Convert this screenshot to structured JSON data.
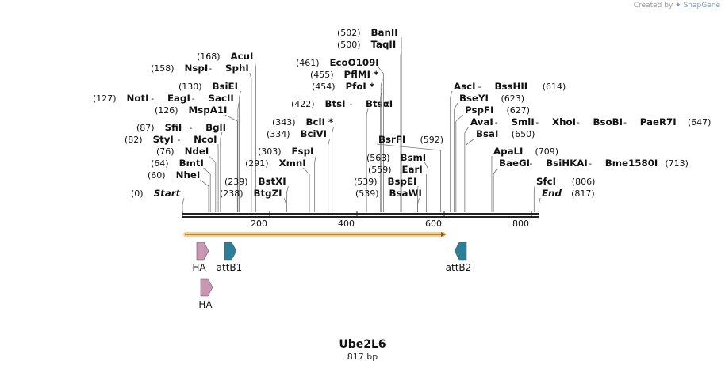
{
  "credit": {
    "prefix": "Created by",
    "brand": "SnapGene"
  },
  "sequence": {
    "name": "Ube2L6",
    "length_label": "817 bp",
    "length_bp": 817
  },
  "axis_ticks": [
    200,
    400,
    600,
    800
  ],
  "sites": [
    {
      "pos": "(0)",
      "bp": 0,
      "names": [
        "Start"
      ],
      "italic": true
    },
    {
      "pos": "(60)",
      "bp": 60,
      "names": [
        "NheI"
      ]
    },
    {
      "pos": "(64)",
      "bp": 64,
      "names": [
        "BmtI"
      ]
    },
    {
      "pos": "(76)",
      "bp": 76,
      "names": [
        "NdeI"
      ]
    },
    {
      "pos": "(82)",
      "bp": 82,
      "names": [
        "StyI",
        "NcoI"
      ]
    },
    {
      "pos": "(87)",
      "bp": 87,
      "names": [
        "SfiI",
        "BglI"
      ]
    },
    {
      "pos": "(126)",
      "bp": 126,
      "names": [
        "MspA1I"
      ]
    },
    {
      "pos": "(127)",
      "bp": 127,
      "names": [
        "NotI",
        "EagI",
        "SacII"
      ]
    },
    {
      "pos": "(130)",
      "bp": 130,
      "names": [
        "BsiEI"
      ]
    },
    {
      "pos": "(158)",
      "bp": 158,
      "names": [
        "NspI",
        "SphI"
      ]
    },
    {
      "pos": "(168)",
      "bp": 168,
      "names": [
        "AcuI"
      ]
    },
    {
      "pos": "(238)",
      "bp": 238,
      "names": [
        "BtgZI"
      ]
    },
    {
      "pos": "(239)",
      "bp": 239,
      "names": [
        "BstXI"
      ]
    },
    {
      "pos": "(291)",
      "bp": 291,
      "names": [
        "XmnI"
      ]
    },
    {
      "pos": "(303)",
      "bp": 303,
      "names": [
        "FspI"
      ]
    },
    {
      "pos": "(334)",
      "bp": 334,
      "names": [
        "BciVI"
      ]
    },
    {
      "pos": "(343)",
      "bp": 343,
      "names": [
        "BclI *"
      ]
    },
    {
      "pos": "(422)",
      "bp": 422,
      "names": [
        "BtsI",
        "BtsαI"
      ]
    },
    {
      "pos": "(454)",
      "bp": 454,
      "names": [
        "PfoI *"
      ]
    },
    {
      "pos": "(455)",
      "bp": 455,
      "names": [
        "PflMI *"
      ]
    },
    {
      "pos": "(461)",
      "bp": 461,
      "names": [
        "EcoO109I"
      ]
    },
    {
      "pos": "(500)",
      "bp": 500,
      "names": [
        "TaqII"
      ]
    },
    {
      "pos": "(502)",
      "bp": 502,
      "names": [
        "BanII"
      ]
    },
    {
      "pos": "(539)",
      "bp": 539,
      "names": [
        "BsaWI"
      ]
    },
    {
      "pos": "(539)",
      "bp": 539,
      "names": [
        "BspEI"
      ]
    },
    {
      "pos": "(559)",
      "bp": 559,
      "names": [
        "EarI"
      ]
    },
    {
      "pos": "(563)",
      "bp": 563,
      "names": [
        "BsmI"
      ]
    },
    {
      "pos": "(592)",
      "bp": 592,
      "names": [
        "BsrFI"
      ]
    },
    {
      "pos": "(614)",
      "bp": 614,
      "names": [
        "AscI",
        "BssHII"
      ]
    },
    {
      "pos": "(623)",
      "bp": 623,
      "names": [
        "BseYI"
      ]
    },
    {
      "pos": "(627)",
      "bp": 627,
      "names": [
        "PspFI"
      ]
    },
    {
      "pos": "(647)",
      "bp": 647,
      "names": [
        "AvaI",
        "SmlI",
        "XhoI",
        "BsoBI",
        "PaeR7I"
      ]
    },
    {
      "pos": "(650)",
      "bp": 650,
      "names": [
        "BsaI"
      ]
    },
    {
      "pos": "(709)",
      "bp": 709,
      "names": [
        "ApaLI"
      ]
    },
    {
      "pos": "(713)",
      "bp": 713,
      "names": [
        "BaeGI",
        "BsiHKAI",
        "Bme1580I"
      ]
    },
    {
      "pos": "(806)",
      "bp": 806,
      "names": [
        "SfcI"
      ]
    },
    {
      "pos": "(817)",
      "bp": 817,
      "names": [
        "End"
      ],
      "italic": true
    }
  ],
  "orf": {
    "start_bp": 0,
    "end_bp": 600,
    "color": "#f0a830"
  },
  "features": [
    {
      "name": "HA",
      "start_bp": 35,
      "end_bp": 60,
      "direction": "right",
      "color": "#c997b4"
    },
    {
      "name": "attB1",
      "start_bp": 100,
      "end_bp": 125,
      "direction": "right",
      "color": "#2b7f99"
    },
    {
      "name": "attB2",
      "start_bp": 625,
      "end_bp": 650,
      "direction": "left",
      "color": "#2b7f99"
    },
    {
      "name": "HA",
      "start_bp": 40,
      "end_bp": 65,
      "direction": "right",
      "color": "#c997b4"
    }
  ]
}
